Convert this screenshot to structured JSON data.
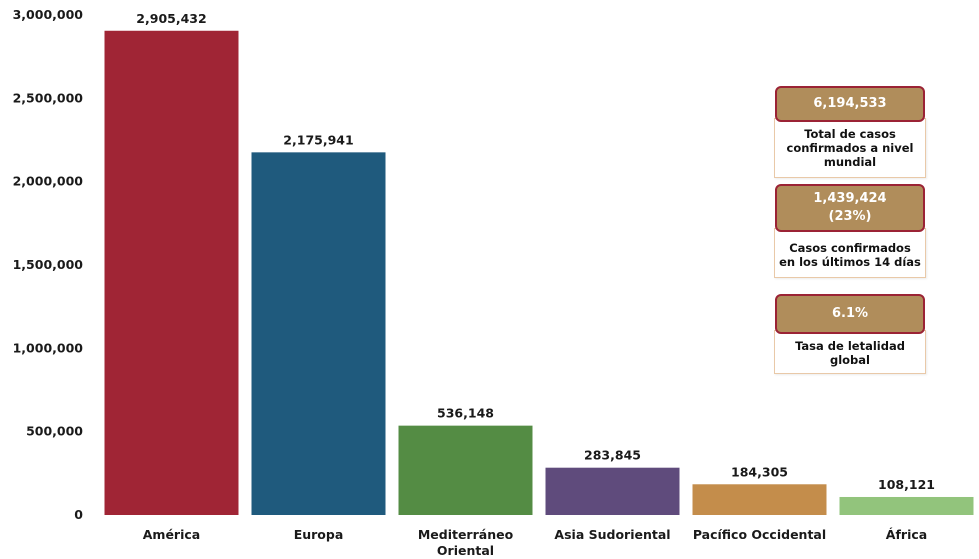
{
  "chart_data": {
    "type": "bar",
    "title": "",
    "xlabel": "",
    "ylabel": "",
    "ylim": [
      0,
      3000000
    ],
    "y_ticks": [
      "0",
      "500,000",
      "1,000,000",
      "1,500,000",
      "2,000,000",
      "2,500,000",
      "3,000,000"
    ],
    "y_tick_values": [
      0,
      500000,
      1000000,
      1500000,
      2000000,
      2500000,
      3000000
    ],
    "categories": [
      "América",
      "Europa",
      "Mediterráneo Oriental",
      "Asia Sudoriental",
      "Pacífico Occidental",
      "África"
    ],
    "category_lines": [
      [
        "América"
      ],
      [
        "Europa"
      ],
      [
        "Mediterráneo",
        "Oriental"
      ],
      [
        "Asia Sudoriental"
      ],
      [
        "Pacífico Occidental"
      ],
      [
        "África"
      ]
    ],
    "values": [
      2905432,
      2175941,
      536148,
      283845,
      184305,
      108121
    ],
    "value_labels": [
      "2,905,432",
      "2,175,941",
      "536,148",
      "283,845",
      "184,305",
      "108,121"
    ],
    "colors": [
      "#a02535",
      "#1f5a7d",
      "#548c44",
      "#5f4b7c",
      "#c48d4b",
      "#92c47c"
    ],
    "grid": false,
    "legend": "none"
  },
  "stats": [
    {
      "value": "6,194,533",
      "description": "Total de casos\nconfirmados a nivel\nmundial"
    },
    {
      "value": "1,439,424\n(23%)",
      "description": "Casos confirmados\nen los últimos 14 días"
    },
    {
      "value": "6.1%",
      "description": "Tasa de letalidad\nglobal"
    }
  ],
  "colors": {
    "stat_fill": "#b08d5b",
    "stat_border": "#9b2335"
  }
}
